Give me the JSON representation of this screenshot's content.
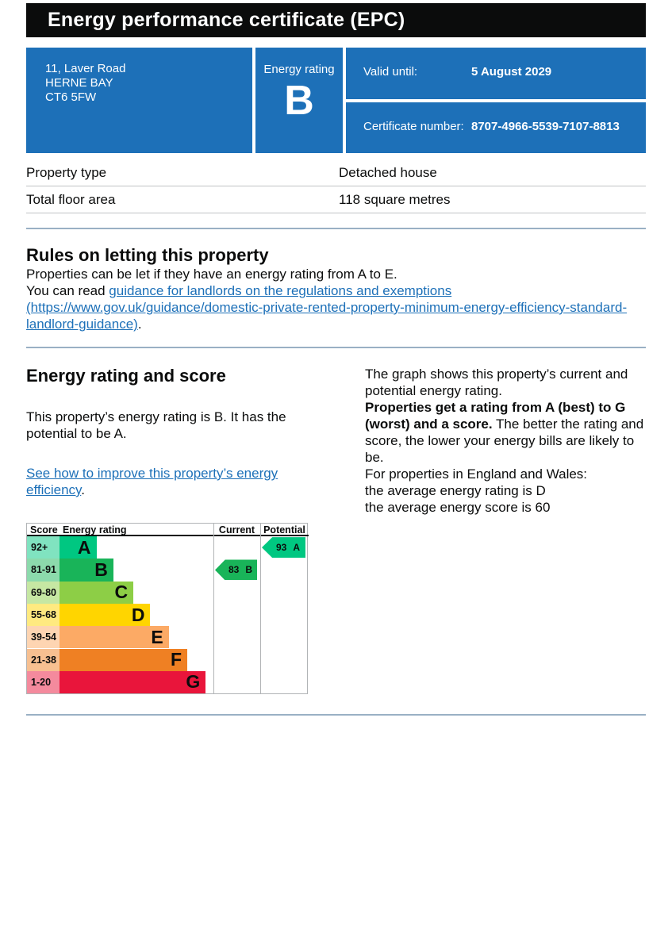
{
  "header": {
    "title": "Energy performance certificate (EPC)"
  },
  "summary": {
    "address_lines": [
      "11, Laver Road",
      "HERNE BAY",
      "CT6 5FW"
    ],
    "energy_rating_label": "Energy rating",
    "energy_rating": "B",
    "valid_until_label": "Valid until:",
    "valid_until": "5 August 2029",
    "certificate_number_label": "Certificate number:",
    "certificate_number": "8707-4966-5539-7107-8813"
  },
  "property_table": {
    "rows": [
      {
        "label": "Property type",
        "value": "Detached house"
      },
      {
        "label": "Total floor area",
        "value": "118 square metres"
      }
    ]
  },
  "rules_section": {
    "heading": "Rules on letting this property",
    "paragraph": "Properties can be let if they have an energy rating from A to E.",
    "read_prefix": "You can read ",
    "link_text": "guidance for landlords on the regulations and exemptions (https://www.gov.uk/guidance/domestic-private-rented-property-minimum-energy-efficiency-standard-landlord-guidance)",
    "read_suffix": "."
  },
  "rating_section": {
    "heading": "Energy rating and score",
    "intro": "This property’s energy rating is B. It has the potential to be A.",
    "improve_link": "See how to improve this property’s energy efficiency",
    "improve_suffix": ".",
    "right": {
      "p1": "The graph shows this property’s current and potential energy rating.",
      "p2_bold": "Properties get a rating from A (best) to G (worst) and a score.",
      "p2_rest": " The better the rating and score, the lower your energy bills are likely to be.",
      "p3": "For properties in England and Wales:",
      "p4a": "the average energy rating is D",
      "p4b": "the average energy score is 60"
    }
  },
  "chart_data": {
    "type": "bar",
    "variant": "epc-rating-bands",
    "title": "Energy rating and score graph",
    "headers": [
      "Score",
      "Energy rating",
      "Current",
      "Potential"
    ],
    "bands": [
      {
        "score_range": "92+",
        "letter": "A",
        "color": "#00c781",
        "tint": "#80e3c0",
        "bar_length_pct": 24
      },
      {
        "score_range": "81-91",
        "letter": "B",
        "color": "#19b459",
        "tint": "#8cdaac",
        "bar_length_pct": 35
      },
      {
        "score_range": "69-80",
        "letter": "C",
        "color": "#8dce46",
        "tint": "#c6e7a3",
        "bar_length_pct": 48
      },
      {
        "score_range": "55-68",
        "letter": "D",
        "color": "#ffd500",
        "tint": "#ffea80",
        "bar_length_pct": 59
      },
      {
        "score_range": "39-54",
        "letter": "E",
        "color": "#fcaa65",
        "tint": "#fed5b2",
        "bar_length_pct": 71
      },
      {
        "score_range": "21-38",
        "letter": "F",
        "color": "#ef8023",
        "tint": "#f7c091",
        "bar_length_pct": 83
      },
      {
        "score_range": "1-20",
        "letter": "G",
        "color": "#e9153b",
        "tint": "#f48a9d",
        "bar_length_pct": 95
      }
    ],
    "current": {
      "score": "83",
      "band": "B",
      "row_index": 1,
      "color": "#19b459"
    },
    "potential": {
      "score": "93",
      "band": "A",
      "row_index": 0,
      "color": "#00c781"
    },
    "legend_position": "none",
    "grid": false
  },
  "colors": {
    "panel_blue": "#1d70b8",
    "title_bar_black": "#0b0c0c",
    "link_blue": "#1d70b8",
    "divider_blue": "#9ab0c4",
    "table_border_grey": "#c0c3c5"
  }
}
